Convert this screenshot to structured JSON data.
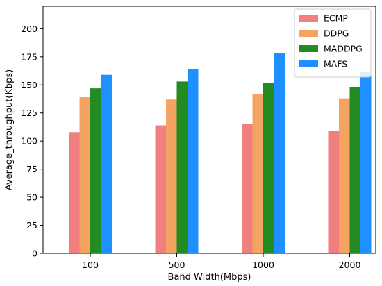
{
  "chart_data": {
    "type": "bar",
    "categories": [
      "100",
      "500",
      "1000",
      "2000"
    ],
    "series": [
      {
        "name": "ECMP",
        "values": [
          108,
          114,
          115,
          109
        ],
        "color": "#f08080"
      },
      {
        "name": "DDPG",
        "values": [
          139,
          137,
          142,
          138
        ],
        "color": "#f4a460"
      },
      {
        "name": "MADDPG",
        "values": [
          147,
          153,
          152,
          148
        ],
        "color": "#228b22"
      },
      {
        "name": "MAFS",
        "values": [
          159,
          164,
          178,
          162
        ],
        "color": "#1e90ff"
      }
    ],
    "title": "",
    "xlabel": "Band Width(Mbps)",
    "ylabel": "Average_throughput(Kbps)",
    "ylim": [
      0,
      220
    ],
    "yticks": [
      0,
      25,
      50,
      75,
      100,
      125,
      150,
      175,
      200
    ],
    "grid": false,
    "legend_position": "top-right"
  }
}
